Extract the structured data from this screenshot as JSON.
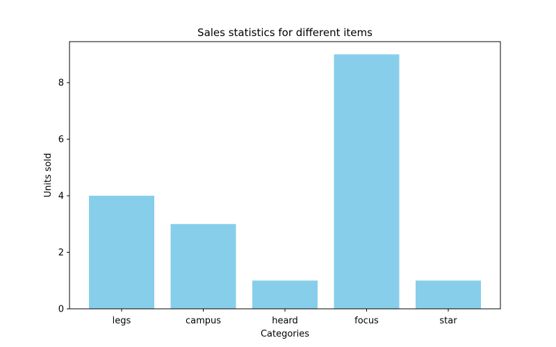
{
  "chart_data": {
    "type": "bar",
    "title": "Sales statistics for different items",
    "xlabel": "Categories",
    "ylabel": "Units sold",
    "categories": [
      "legs",
      "campus",
      "heard",
      "focus",
      "star"
    ],
    "values": [
      4,
      3,
      1,
      9,
      1
    ],
    "ylim": [
      0,
      9.45
    ],
    "yticks": [
      0,
      2,
      4,
      6,
      8
    ],
    "bar_color": "#87CEEB",
    "grid": false,
    "legend": "none"
  }
}
